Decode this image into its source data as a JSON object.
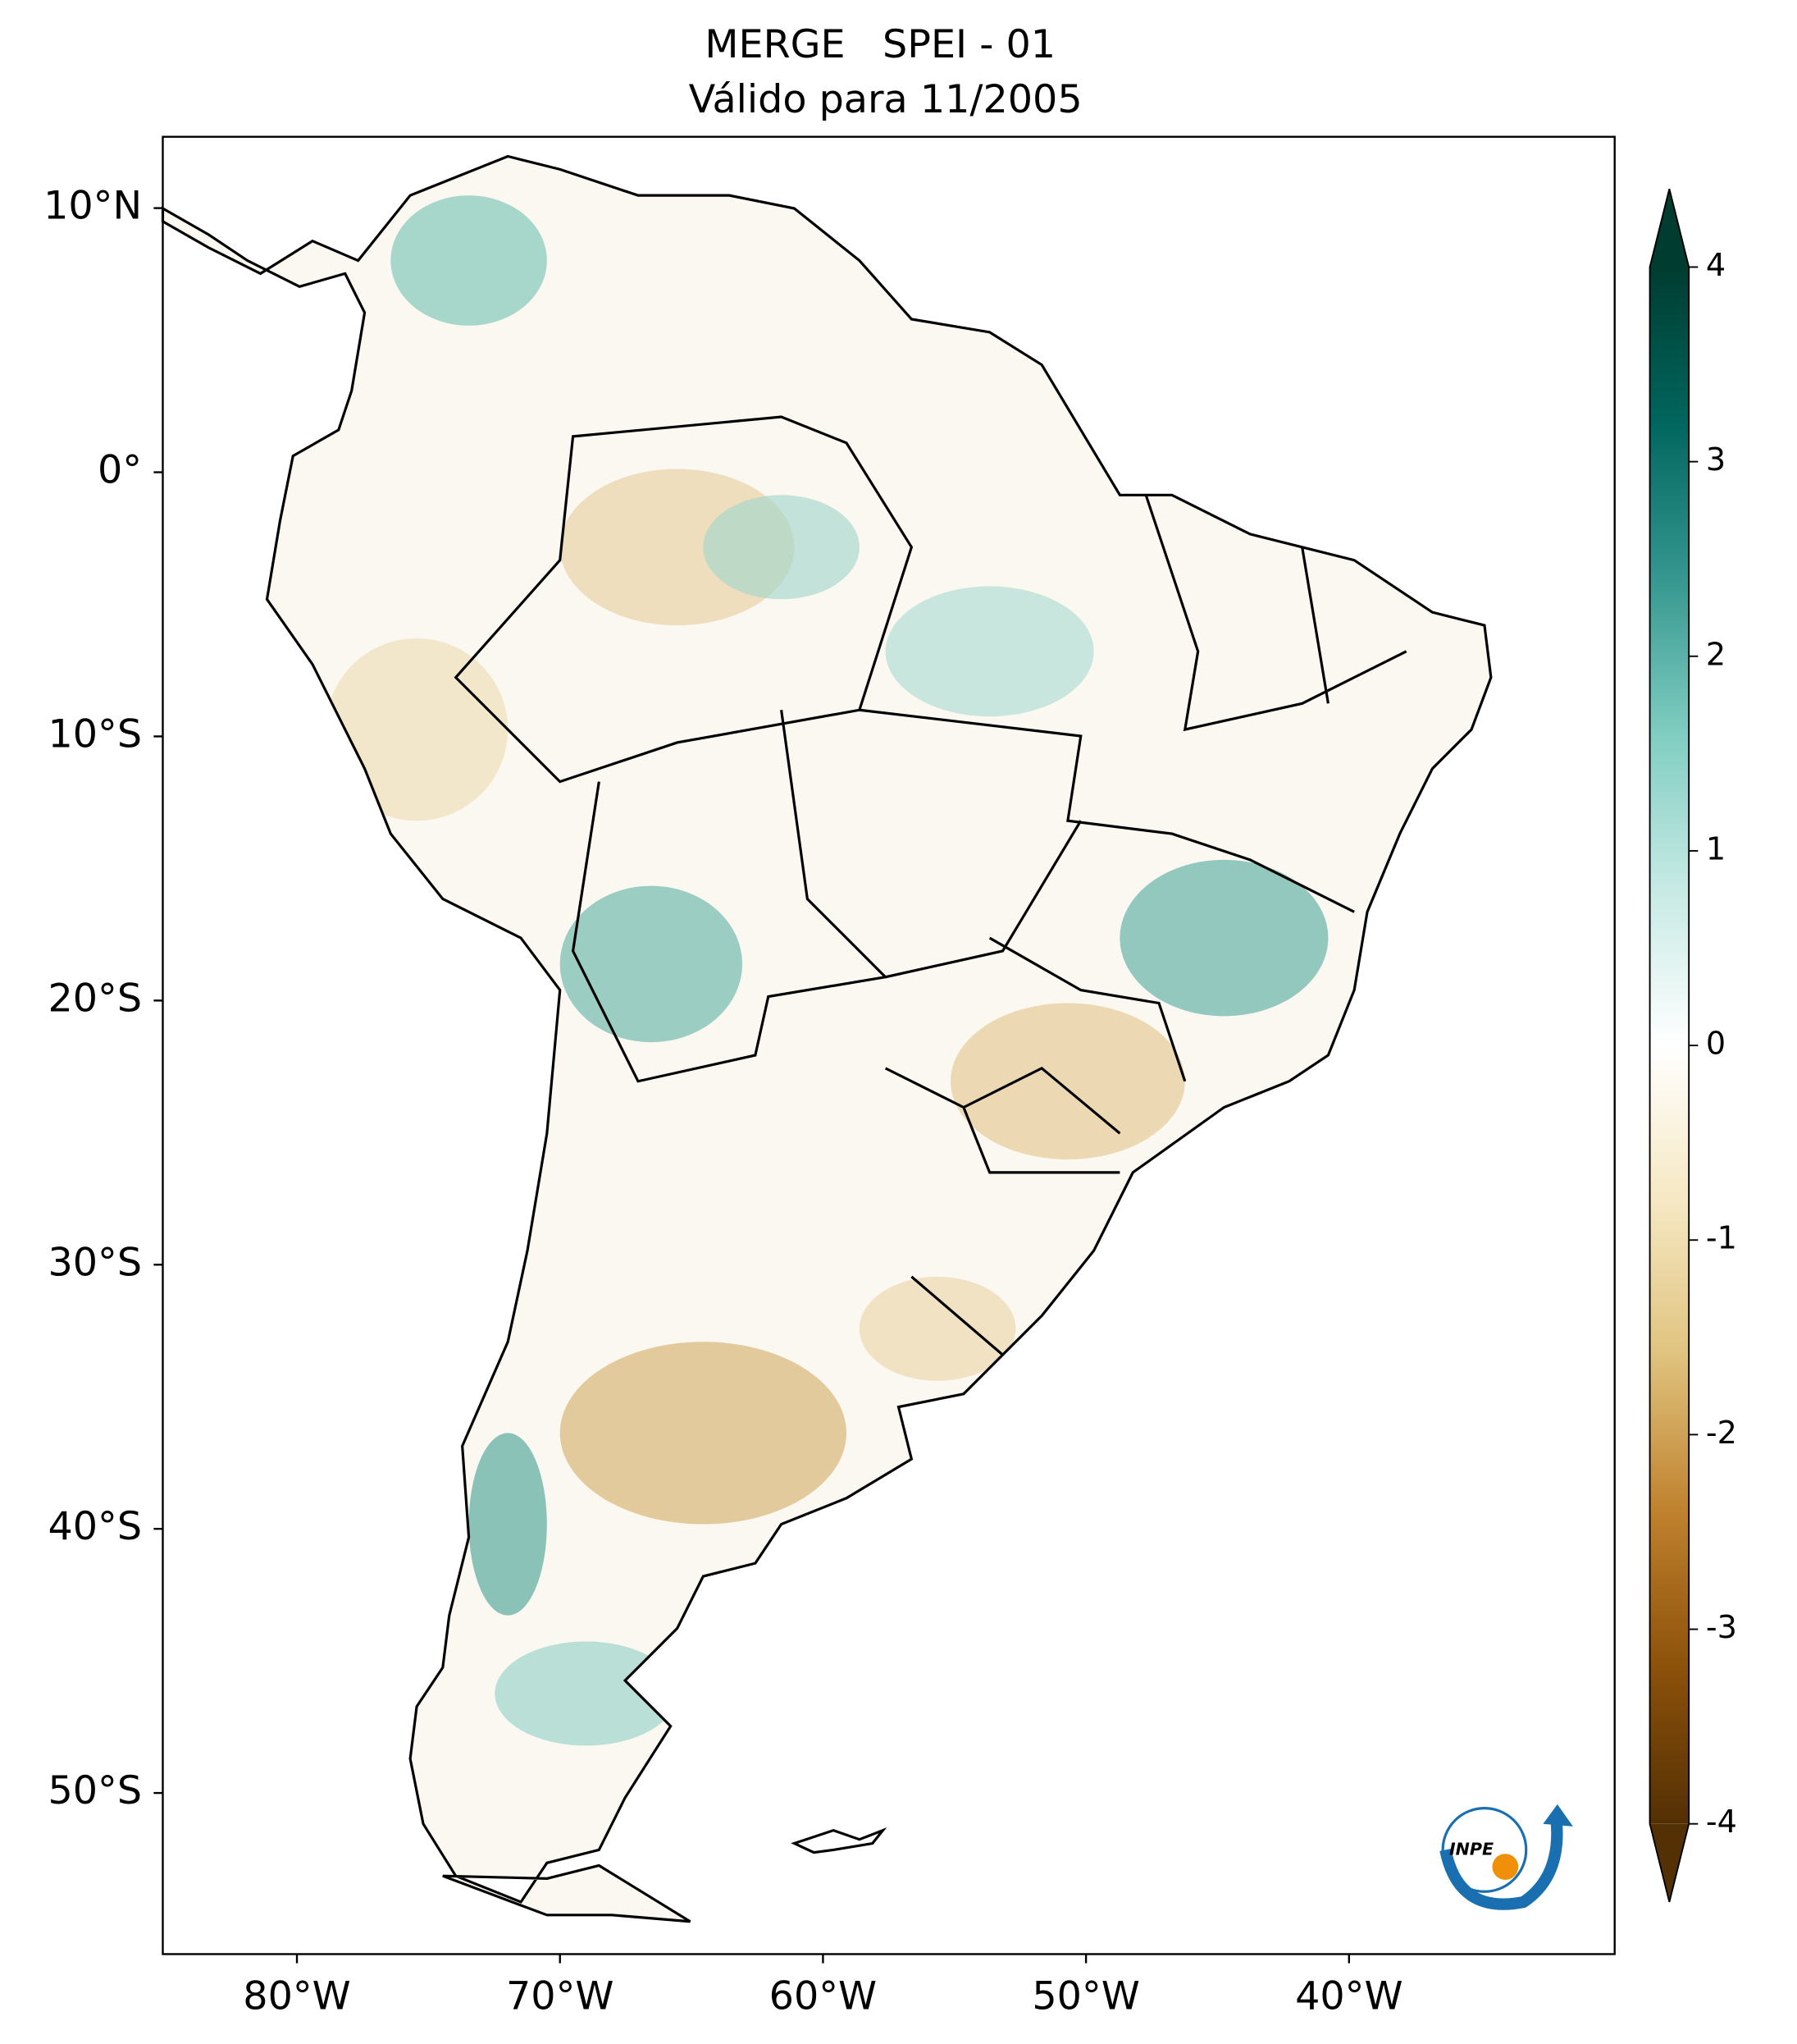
{
  "chart_data": {
    "type": "map",
    "title": "MERGE   SPEI - 01",
    "subtitle": "Válido para 11/2005",
    "xlim": [
      -85.1,
      -29.9
    ],
    "ylim": [
      -56.1,
      12.7
    ],
    "xticks": [
      {
        "value": -80,
        "label": "80°W"
      },
      {
        "value": -70,
        "label": "70°W"
      },
      {
        "value": -60,
        "label": "60°W"
      },
      {
        "value": -50,
        "label": "50°W"
      },
      {
        "value": -40,
        "label": "40°W"
      }
    ],
    "yticks": [
      {
        "value": 10,
        "label": "10°N"
      },
      {
        "value": 0,
        "label": "0°"
      },
      {
        "value": -10,
        "label": "10°S"
      },
      {
        "value": -20,
        "label": "20°S"
      },
      {
        "value": -30,
        "label": "30°S"
      },
      {
        "value": -40,
        "label": "40°S"
      },
      {
        "value": -50,
        "label": "50°S"
      }
    ],
    "colorbar": {
      "lim": [
        -4,
        4
      ],
      "ticks": [
        -4,
        -3,
        -2,
        -1,
        0,
        1,
        2,
        3,
        4
      ],
      "colors": [
        "#543005",
        "#8c510a",
        "#bf812d",
        "#dfc27d",
        "#f6e8c3",
        "#ffffff",
        "#c7eae5",
        "#80cdc1",
        "#35978f",
        "#01665e",
        "#003c30"
      ]
    },
    "logo": "INPE"
  }
}
